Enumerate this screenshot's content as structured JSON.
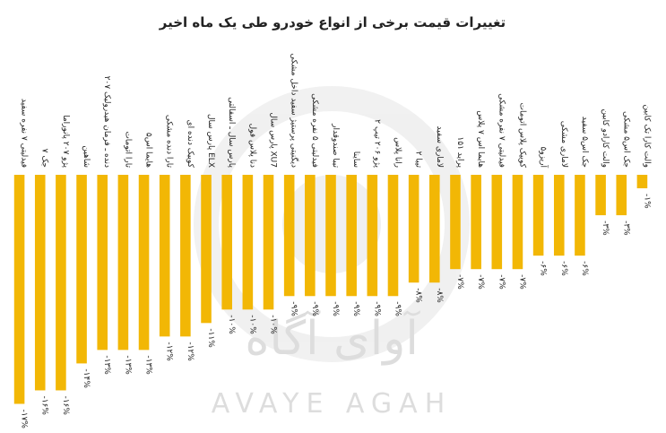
{
  "chart_data": {
    "type": "bar",
    "title": "تغییرات قیمت برخی از انواع خودرو طی یک ماه اخیر",
    "watermark": "AVAYE AGAH",
    "watermark_fa": "آوای آگاه",
    "categories": [
      "فیدلیتی ۷ نفره سفید",
      "جک ۷",
      "پژو ۲۰۷ پانوراما",
      "شاهین",
      "۲۰۷ دنده ـ فرمان هیدرولیک",
      "تارا اتومات",
      "هایما اس۵",
      "تارا دنده مشکی",
      "کوییک دنده ای",
      "پارس سال ELX",
      "پارس سال ـ اسفالتی",
      "دنا پلاس فول",
      "پارس سال XU7",
      "دیگنیتی پرستیژ سفید داخل مشکی",
      "فیدلیتی ۵ نفره مشکی",
      "تیبا صندوقدار",
      "ساینا",
      "پژو ۲۰۶ تیپ ۲",
      "رانا پلاس",
      "تیبا ۲",
      "لاماری سفید",
      "پراید ۱۵۱",
      "هایما اس ۷ پلاس",
      "فیدلیتی ۷ نفره مشکی",
      "کوییک پلاس اتومات",
      "آریزو۵",
      "لاماری مشکی",
      "جک اس۵ سفید",
      "والت کارادو کابین",
      "جک اس۵ مشکی",
      "والت کارا تک کابین"
    ],
    "values": [
      -17,
      -16,
      -16,
      -14,
      -13,
      -13,
      -13,
      -12,
      -12,
      -11,
      -10,
      -10,
      -10,
      -9,
      -9,
      -9,
      -9,
      -9,
      -9,
      -8,
      -8,
      -7,
      -7,
      -7,
      -7,
      -6,
      -6,
      -6,
      -3,
      -3,
      -1
    ],
    "value_labels": [
      "-۱۷%",
      "-۱۶%",
      "-۱۶%",
      "-۱۴%",
      "-۱۳%",
      "-۱۳%",
      "-۱۳%",
      "-۱۲%",
      "-۱۲%",
      "-۱۱%",
      "-۱۰%",
      "-۱۰%",
      "-۱۰%",
      "-۹%",
      "-۹%",
      "-۹%",
      "-۹%",
      "-۹%",
      "-۹%",
      "-۸%",
      "-۸%",
      "-۷%",
      "-۷%",
      "-۷%",
      "-۷%",
      "-۶%",
      "-۶%",
      "-۶%",
      "-۳%",
      "-۳%",
      "-۱%"
    ],
    "color": "#f2b705",
    "ylim": [
      -17.5,
      0
    ]
  }
}
